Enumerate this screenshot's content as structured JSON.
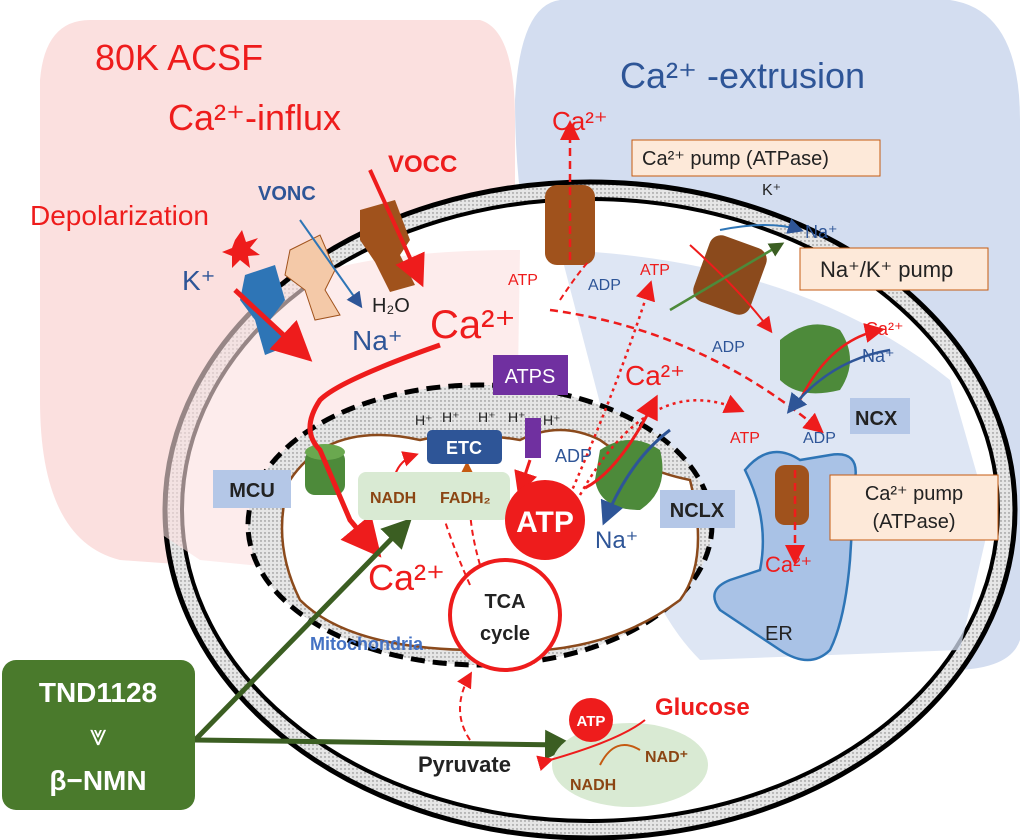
{
  "regions": {
    "influx_title": "80K ACSF",
    "influx_subtitle": "Ca²⁺-influx",
    "extrusion_title": "Ca²⁺ -extrusion"
  },
  "labels": {
    "depolarization": "Depolarization",
    "vonc": "VONC",
    "vocc": "VOCC",
    "k_plus": "K⁺",
    "na_plus_left": "Na⁺",
    "h2o": "H₂O",
    "ca_center": "Ca²⁺",
    "ca_top": "Ca²⁺",
    "ca_pump_top": "Ca²⁺ pump (ATPase)",
    "k_plus_pump": "K⁺",
    "na_plus_pump": "Na⁺",
    "nak_pump": "Na⁺/K⁺ pump",
    "atp_pump1": "ATP",
    "adp_pump1": "ADP",
    "atp_pump2": "ATP",
    "adp_pump2": "ADP",
    "ca_ncx": "Ca²⁺",
    "na_ncx": "Na⁺",
    "ncx": "NCX",
    "atp_er": "ATP",
    "adp_er": "ADP",
    "ca_pump_er_1": "Ca²⁺ pump",
    "ca_pump_er_2": "(ATPase)",
    "ca_er": "Ca²⁺",
    "er": "ER",
    "ca_mito_out": "Ca²⁺",
    "atps": "ATPS",
    "h_plus": [
      "H⁺",
      "H⁺",
      "H⁺",
      "H⁺",
      "H⁺"
    ],
    "etc": "ETC",
    "adp_atps": "ADP",
    "atp_big": "ATP",
    "nclx": "NCLX",
    "na_nclx": "Na⁺",
    "mcu": "MCU",
    "nadh": "NADH",
    "fadh2": "FADH₂",
    "ca_matrix": "Ca²⁺",
    "tca_1": "TCA",
    "tca_2": "cycle",
    "mitochondria": "Mitochondria",
    "glucose": "Glucose",
    "atp_glycolysis": "ATP",
    "nad_plus": "NAD⁺",
    "nadh_glycolysis": "NADH",
    "pyruvate": "Pyruvate"
  },
  "drug_box": {
    "top": "TND1128",
    "arrow": "⩔",
    "bottom": "β−NMN"
  },
  "colors": {
    "influx_bg": "#fbe0df",
    "extrusion_bg": "#d3ddf0",
    "red": "#ee1c1c",
    "blue_text": "#2e5597",
    "drug_green": "#4a7a2c",
    "channel_brown": "#a0521c",
    "ncx_green": "#4d8a3a",
    "atps_purple": "#7030a0",
    "etc_blue": "#2e5597",
    "label_box_blue": "#b4c7e7",
    "callout_bg": "#fde9d9"
  }
}
